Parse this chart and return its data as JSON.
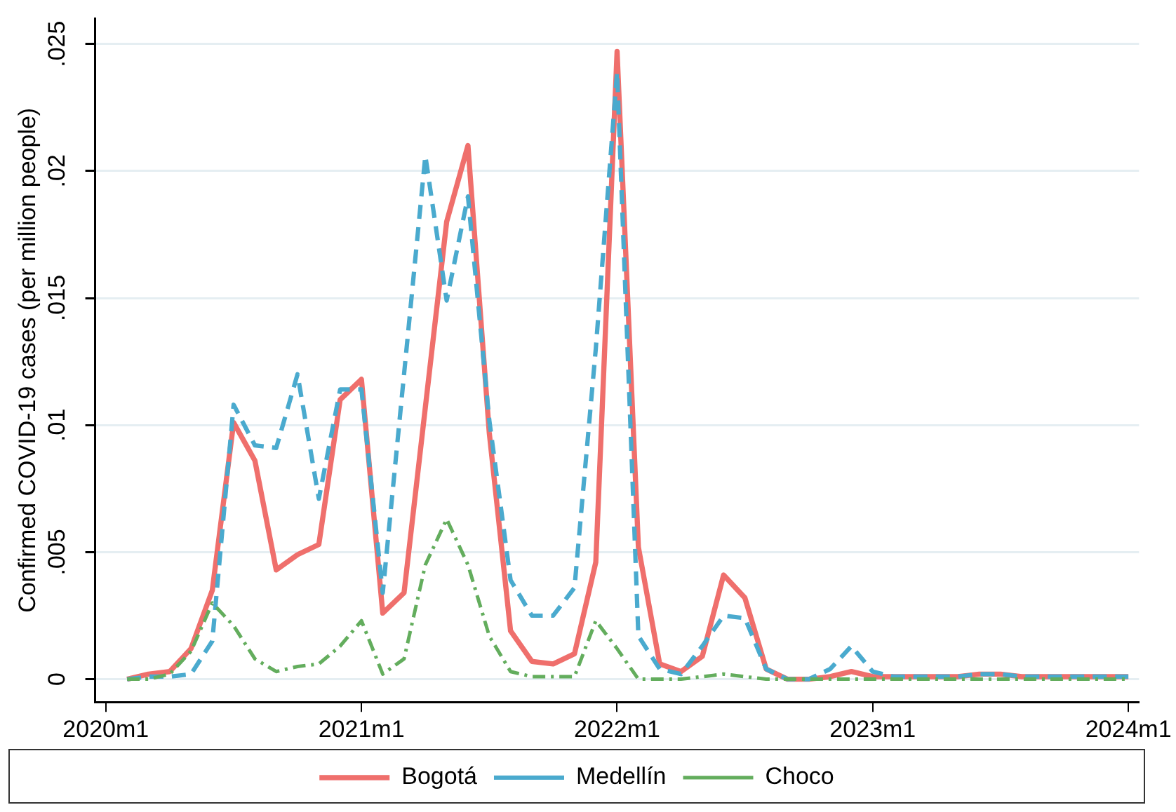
{
  "chart_data": {
    "type": "line",
    "ylabel": "Confirmed COVID-19 cases (per million people)",
    "categories": [
      "2020m1",
      null,
      null,
      null,
      null,
      null,
      null,
      null,
      null,
      null,
      null,
      null,
      "2021m1",
      null,
      null,
      null,
      null,
      null,
      null,
      null,
      null,
      null,
      null,
      null,
      "2022m1",
      null,
      null,
      null,
      null,
      null,
      null,
      null,
      null,
      null,
      null,
      null,
      "2023m1",
      null,
      null,
      null,
      null,
      null,
      null,
      null,
      null,
      null,
      null,
      null,
      "2024m1"
    ],
    "series": [
      {
        "name": "Bogotá",
        "color": "#ef6f6c",
        "line_style": "solid",
        "values": [
          null,
          0,
          0.0002,
          0.0003,
          0.0012,
          0.0035,
          0.0101,
          0.0086,
          0.0043,
          0.0049,
          0.0053,
          0.011,
          0.0118,
          0.0026,
          0.0034,
          0.0107,
          0.018,
          0.021,
          0.0097,
          0.0019,
          0.0007,
          0.0006,
          0.001,
          0.0046,
          0.0247,
          0.0052,
          0.0006,
          0.0003,
          0.0009,
          0.0041,
          0.0032,
          0.0004,
          0,
          0,
          0.0001,
          0.0003,
          0.0001,
          0.0001,
          0.0001,
          0.0001,
          0.0001,
          0.0002,
          0.0002,
          0.0001,
          0.0001,
          0.0001,
          0.0001,
          0.0001,
          0.0001
        ]
      },
      {
        "name": "Medellín",
        "color": "#4aaace",
        "line_style": "dashed",
        "values": [
          null,
          0,
          0.0001,
          0.0001,
          0.0002,
          0.0015,
          0.0108,
          0.0092,
          0.0091,
          0.012,
          0.0071,
          0.0114,
          0.0114,
          0.0034,
          0.012,
          0.0206,
          0.0149,
          0.019,
          0.0102,
          0.0039,
          0.0025,
          0.0025,
          0.0036,
          0.013,
          0.0239,
          0.0017,
          0.0004,
          0.0002,
          0.0013,
          0.0025,
          0.0024,
          0.0004,
          0,
          0,
          0.0004,
          0.0013,
          0.0003,
          0.0001,
          0.0001,
          0.0001,
          0.0001,
          0.0002,
          0.0002,
          0.0001,
          0.0001,
          0.0001,
          0.0001,
          0.0001,
          0.0001
        ]
      },
      {
        "name": "Choco",
        "color": "#63ad5d",
        "line_style": "dashdot",
        "values": [
          null,
          0,
          0,
          0.0002,
          0.0011,
          0.003,
          0.0021,
          0.0008,
          0.0003,
          0.0005,
          0.0006,
          0.0013,
          0.0023,
          0.0002,
          0.0008,
          0.0045,
          0.0063,
          0.0045,
          0.0017,
          0.0003,
          0.0001,
          0.0001,
          0.0001,
          0.0023,
          0.0012,
          0,
          0,
          0,
          0.0001,
          0.0002,
          0.0001,
          0,
          0,
          0,
          0,
          0,
          0,
          0,
          0,
          0,
          0,
          0,
          0,
          0,
          0,
          0,
          0,
          0,
          0
        ]
      }
    ],
    "ylim": [
      -0.0009,
      0.026
    ],
    "yticks": [
      0,
      {
        "value": 0.005,
        "label": ".005"
      },
      {
        "value": 0.01,
        "label": ".01"
      },
      {
        "value": 0.015,
        "label": ".015"
      },
      {
        "value": 0.02,
        "label": ".02"
      },
      {
        "value": 0.025,
        "label": ".025"
      }
    ],
    "grid": "y",
    "legend": "bottom",
    "marker": "none"
  }
}
